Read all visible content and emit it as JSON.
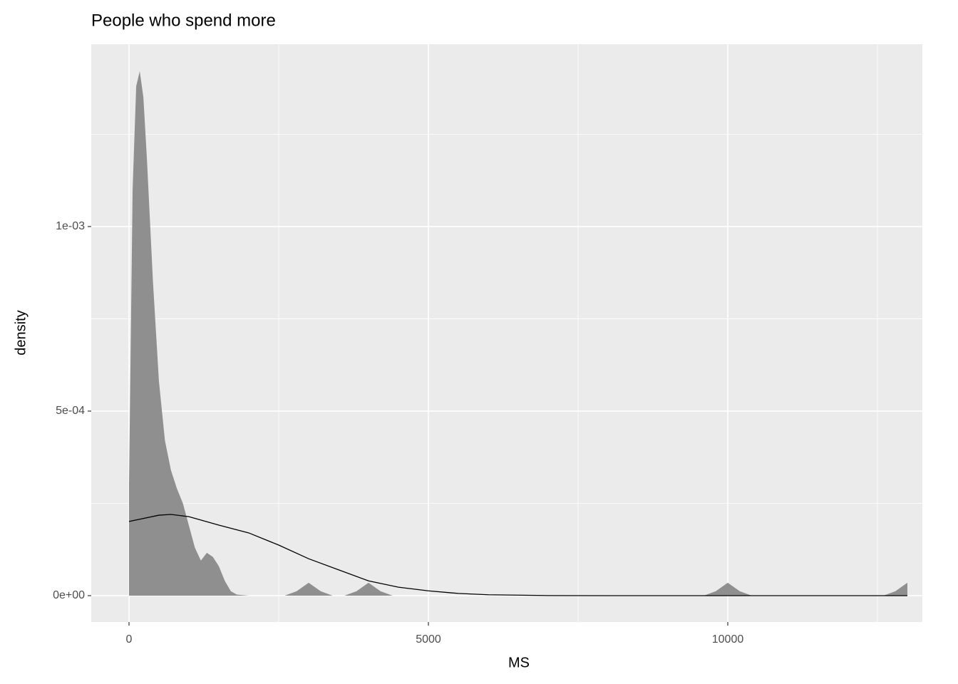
{
  "chart_data": {
    "type": "area",
    "title": "People who spend more",
    "x_label": "MS",
    "y_label": "density",
    "xlim": [
      -631,
      13250
    ],
    "ylim": [
      -7.14e-05,
      0.001494
    ],
    "xticks": [
      0,
      5000,
      10000
    ],
    "xminor": [
      2500,
      7500,
      12500
    ],
    "yticks": [
      {
        "value": 0,
        "label": "0e+00"
      },
      {
        "value": 0.0005,
        "label": "5e-04"
      },
      {
        "value": 0.001,
        "label": "1e-03"
      }
    ],
    "yminor": [
      0.00025,
      0.00075,
      0.00125
    ],
    "grid": true,
    "background": "#ebebeb",
    "series": [
      {
        "type": "area",
        "color": "#8f8f8f",
        "x": [
          0,
          60,
          120,
          179,
          240,
          300,
          400,
          500,
          600,
          700,
          800,
          900,
          1000,
          1100,
          1200,
          1300,
          1400,
          1500,
          1600,
          1700,
          1800,
          2000,
          2600,
          2800,
          3000,
          3200,
          3400,
          3600,
          3800,
          4000,
          4200,
          4400,
          9600,
          9800,
          10000,
          10200,
          10400,
          12600,
          12800,
          13000
        ],
        "values": [
          0.0003,
          0.0011,
          0.00138,
          0.001421,
          0.00135,
          0.00118,
          0.00085,
          0.00058,
          0.00042,
          0.00034,
          0.00029,
          0.00025,
          0.00019,
          0.00013,
          9.5e-05,
          0.000116,
          0.000105,
          8e-05,
          4e-05,
          1.2e-05,
          3e-06,
          0,
          0,
          1.2e-05,
          3.5e-05,
          1.2e-05,
          0,
          0,
          1.2e-05,
          3.5e-05,
          1.2e-05,
          0,
          0,
          1.2e-05,
          3.5e-05,
          1.2e-05,
          0,
          0,
          1.2e-05,
          3.5e-05
        ]
      },
      {
        "type": "line",
        "color": "#000000",
        "x": [
          0,
          500,
          700,
          1000,
          1500,
          2000,
          2500,
          3000,
          3500,
          4000,
          4500,
          5000,
          5500,
          6000,
          7000,
          8000,
          13000
        ],
        "values": [
          0.000201,
          0.000218,
          0.00022,
          0.000214,
          0.000191,
          0.00017,
          0.000137,
          0.0001,
          7e-05,
          4e-05,
          2.3e-05,
          1.3e-05,
          6e-06,
          2.5e-06,
          3e-07,
          0,
          0
        ]
      }
    ]
  }
}
